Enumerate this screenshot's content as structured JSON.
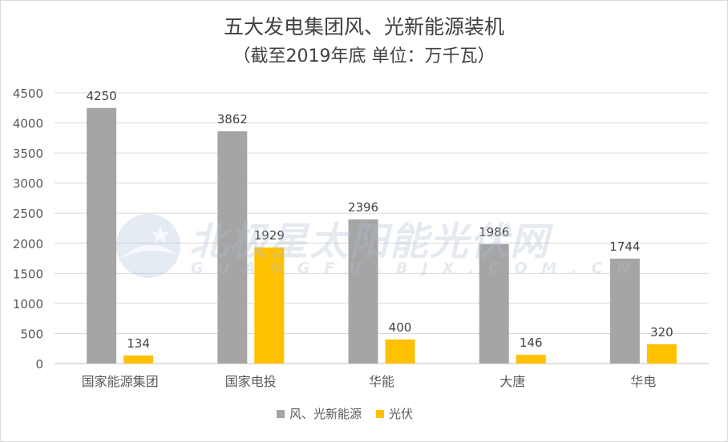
{
  "chart_data": {
    "type": "bar",
    "title": "五大发电集团风、光新能源装机",
    "subtitle": "（截至2019年底  单位：万千瓦）",
    "categories": [
      "国家能源集团",
      "国家电投",
      "华能",
      "大唐",
      "华电"
    ],
    "series": [
      {
        "name": "风、光新能源",
        "values": [
          4250,
          3862,
          2396,
          1986,
          1744
        ],
        "color": "#a5a5a5"
      },
      {
        "name": "光伏",
        "values": [
          134,
          1929,
          400,
          146,
          320
        ],
        "color": "#ffc000"
      }
    ],
    "ylim": [
      0,
      4500
    ],
    "yticks": [
      0,
      500,
      1000,
      1500,
      2000,
      2500,
      3000,
      3500,
      4000,
      4500
    ],
    "xlabel": "",
    "ylabel": "",
    "grid": true,
    "legend_position": "bottom"
  },
  "watermark": {
    "text": "北极星太阳能光伏网",
    "subtext": "GUANGFU.BJX.COM.CN"
  }
}
